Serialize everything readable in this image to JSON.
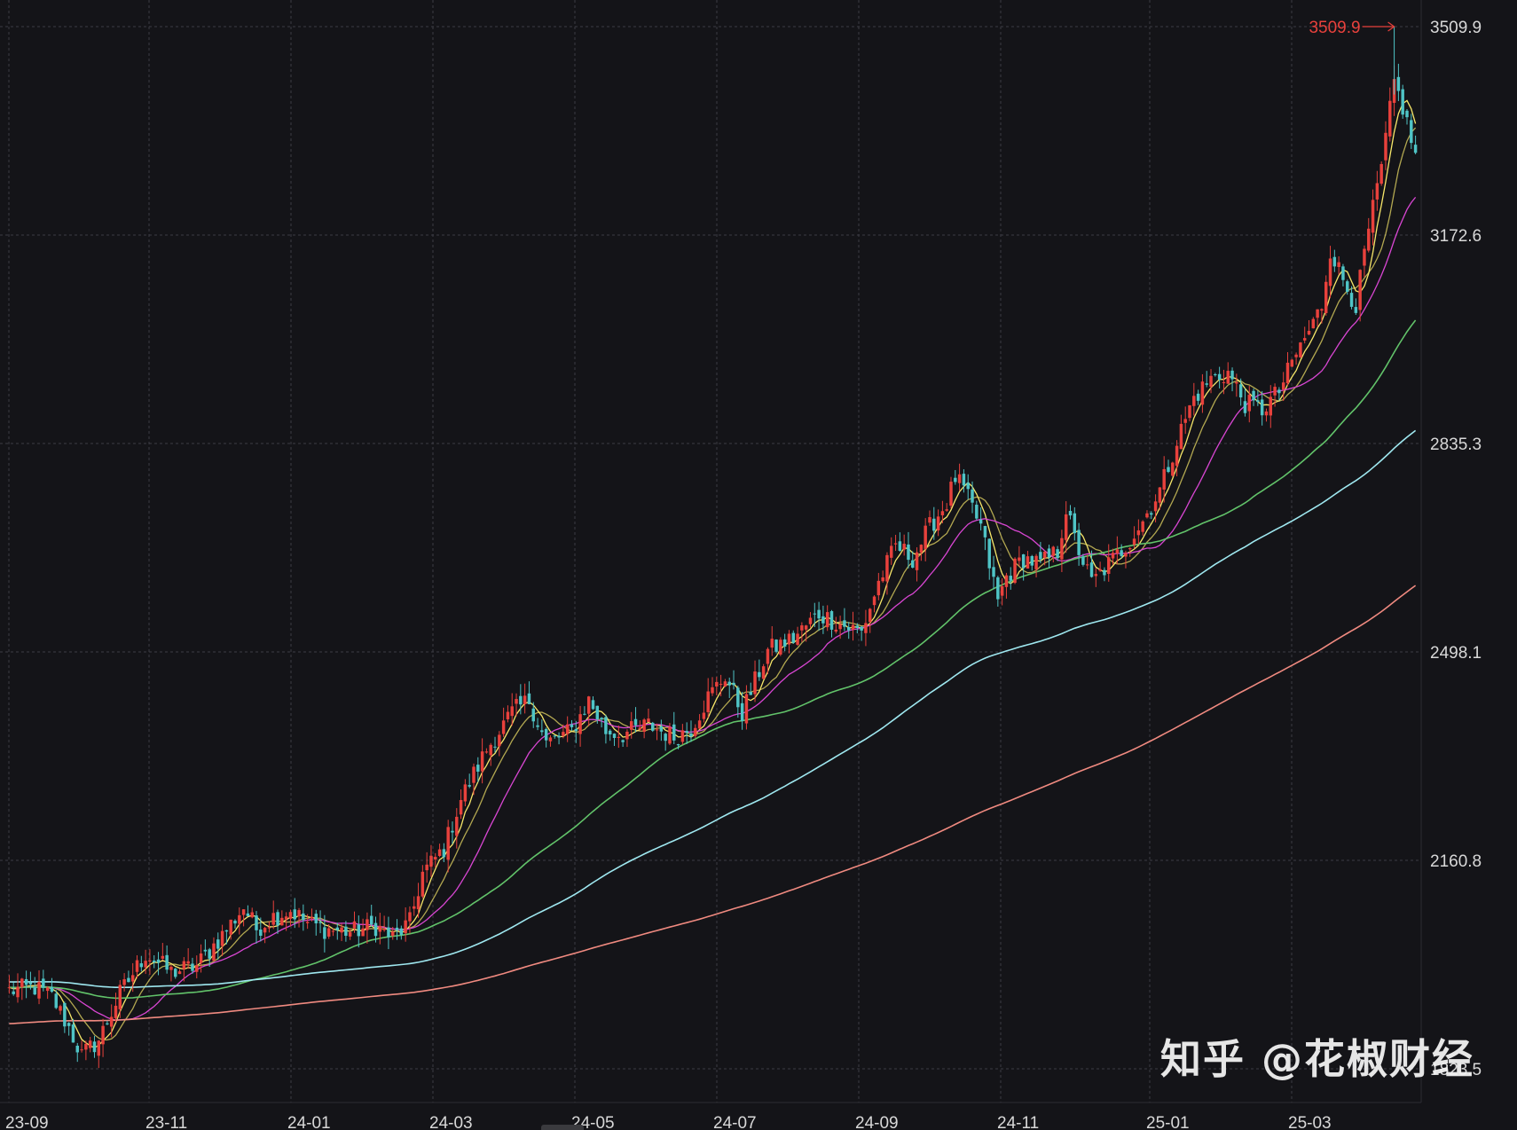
{
  "watermark": "知乎 @花椒财经",
  "colors": {
    "background": "#141418",
    "grid": "#3c3c44",
    "axis_text": "#d8d8d8",
    "up": "#e8413c",
    "down": "#4fc4c6",
    "peak": "#e8413c"
  },
  "chart_data": {
    "type": "candlestick",
    "title": "",
    "xlabel": "",
    "ylabel": "",
    "ylim": [
      1823.5,
      3509.9
    ],
    "y_ticks": [
      3509.9,
      3172.6,
      2835.3,
      2498.1,
      2160.8,
      1823.5
    ],
    "y_tick_labels": [
      "3509.9",
      "3172.6",
      "2835.3",
      "2498.1",
      "2160.8",
      "1823.5"
    ],
    "x_ticks": [
      "23-09",
      "23-11",
      "24-01",
      "24-03",
      "24-05",
      "24-07",
      "24-09",
      "24-11",
      "25-01",
      "25-03"
    ],
    "peak_label": "3509.9",
    "peak_value": 3509.9,
    "close_path_anchors": [
      [
        0,
        1950
      ],
      [
        6,
        1955
      ],
      [
        10,
        1940
      ],
      [
        14,
        1890
      ],
      [
        17,
        1845
      ],
      [
        21,
        1870
      ],
      [
        26,
        1945
      ],
      [
        32,
        2010
      ],
      [
        38,
        1980
      ],
      [
        44,
        1990
      ],
      [
        50,
        2040
      ],
      [
        55,
        2085
      ],
      [
        58,
        2050
      ],
      [
        62,
        2070
      ],
      [
        66,
        2080
      ],
      [
        70,
        2060
      ],
      [
        74,
        2050
      ],
      [
        80,
        2045
      ],
      [
        86,
        2055
      ],
      [
        90,
        2035
      ],
      [
        94,
        2060
      ],
      [
        97,
        2140
      ],
      [
        102,
        2180
      ],
      [
        106,
        2260
      ],
      [
        112,
        2340
      ],
      [
        118,
        2400
      ],
      [
        122,
        2420
      ],
      [
        126,
        2350
      ],
      [
        132,
        2370
      ],
      [
        136,
        2420
      ],
      [
        140,
        2370
      ],
      [
        144,
        2365
      ],
      [
        150,
        2380
      ],
      [
        156,
        2360
      ],
      [
        160,
        2375
      ],
      [
        164,
        2425
      ],
      [
        168,
        2460
      ],
      [
        172,
        2400
      ],
      [
        178,
        2500
      ],
      [
        184,
        2520
      ],
      [
        190,
        2560
      ],
      [
        196,
        2540
      ],
      [
        200,
        2530
      ],
      [
        204,
        2610
      ],
      [
        208,
        2670
      ],
      [
        212,
        2650
      ],
      [
        216,
        2700
      ],
      [
        220,
        2740
      ],
      [
        222,
        2780
      ],
      [
        224,
        2760
      ],
      [
        228,
        2700
      ],
      [
        232,
        2580
      ],
      [
        234,
        2620
      ],
      [
        238,
        2650
      ],
      [
        242,
        2640
      ],
      [
        246,
        2660
      ],
      [
        248,
        2730
      ],
      [
        250,
        2680
      ],
      [
        254,
        2610
      ],
      [
        258,
        2640
      ],
      [
        262,
        2670
      ],
      [
        266,
        2710
      ],
      [
        270,
        2760
      ],
      [
        274,
        2840
      ],
      [
        278,
        2910
      ],
      [
        282,
        2940
      ],
      [
        286,
        2950
      ],
      [
        290,
        2900
      ],
      [
        294,
        2890
      ],
      [
        298,
        2920
      ],
      [
        302,
        2980
      ],
      [
        306,
        3030
      ],
      [
        308,
        3060
      ],
      [
        310,
        3150
      ],
      [
        313,
        3100
      ],
      [
        316,
        3060
      ],
      [
        319,
        3180
      ],
      [
        322,
        3280
      ],
      [
        325,
        3420
      ],
      [
        327,
        3380
      ],
      [
        330,
        3300
      ]
    ],
    "moving_averages": [
      {
        "color": "#f7e76a",
        "period": 5
      },
      {
        "color": "#f7e76a",
        "period": 10
      },
      {
        "color": "#d946d3",
        "period": 20
      },
      {
        "color": "#62c36a",
        "period": 60
      },
      {
        "color": "#9fe8f0",
        "period": 120
      },
      {
        "color": "#f08a80",
        "period": 250
      }
    ]
  }
}
